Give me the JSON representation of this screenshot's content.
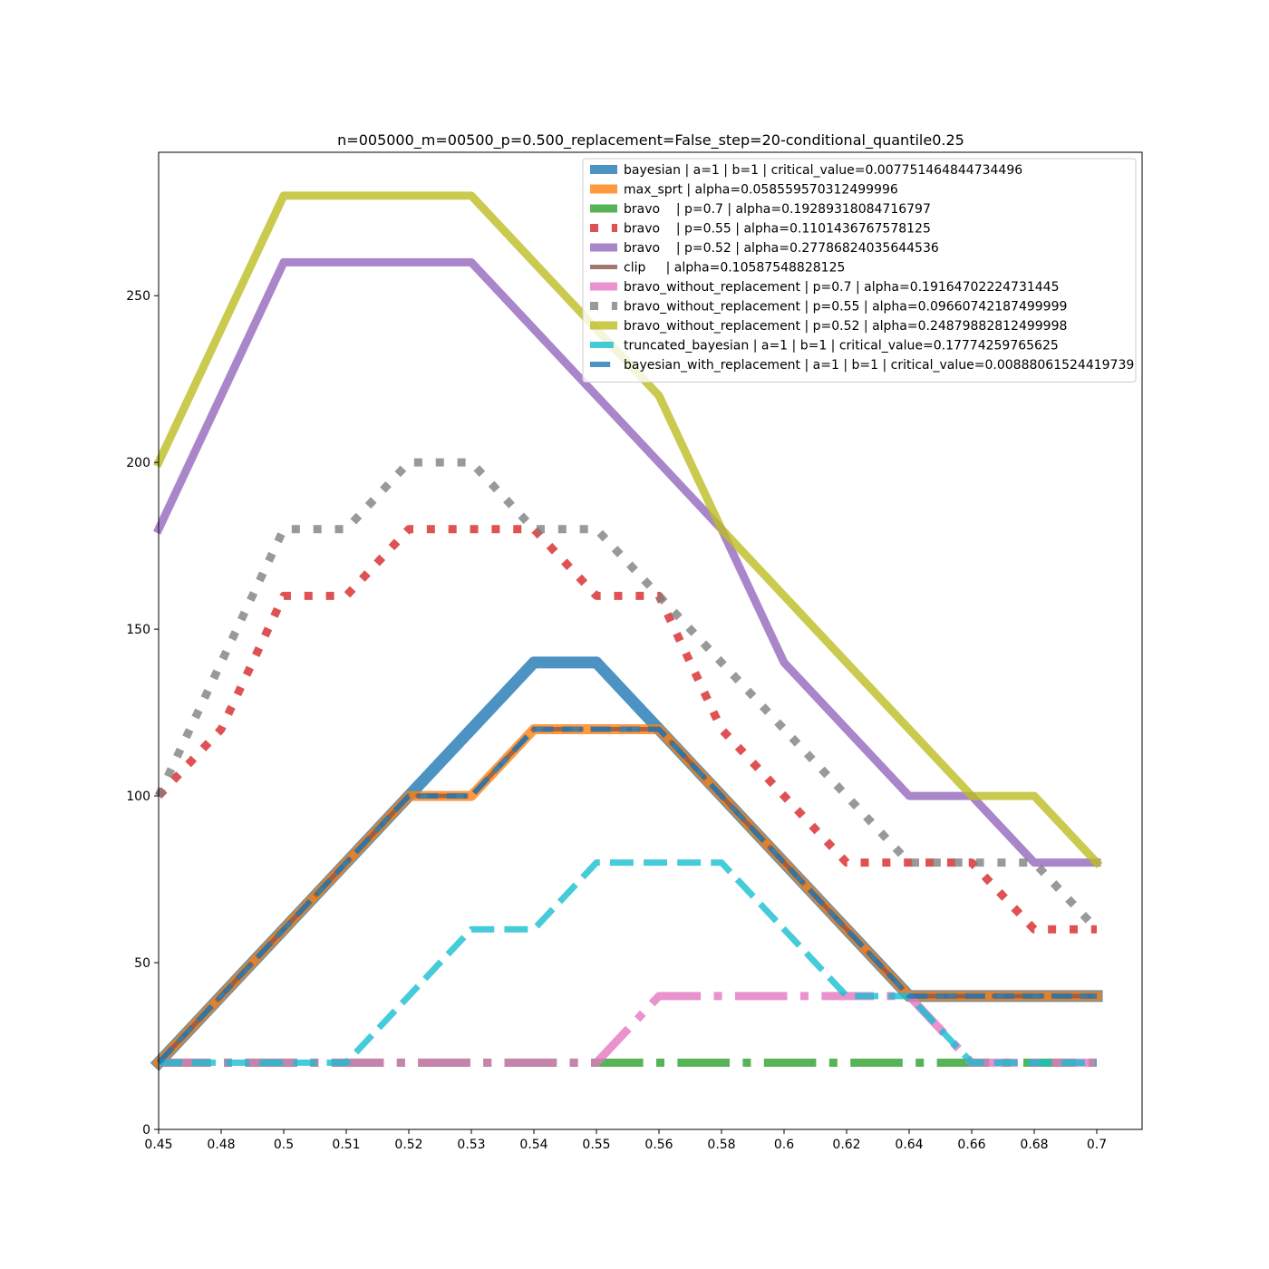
{
  "chart_data": {
    "type": "line",
    "title": "n=005000_m=00500_p=0.500_replacement=False_step=20-conditional_quantile0.25",
    "xlabel": "",
    "ylabel": "",
    "x": [
      "0.45",
      "0.48",
      "0.5",
      "0.51",
      "0.52",
      "0.53",
      "0.54",
      "0.55",
      "0.56",
      "0.58",
      "0.6",
      "0.62",
      "0.64",
      "0.66",
      "0.68",
      "0.7"
    ],
    "y_ticks": [
      0,
      50,
      100,
      150,
      200,
      250
    ],
    "ylim": [
      0,
      293
    ],
    "grid": false,
    "legend_position": "top-right",
    "series": [
      {
        "name": "bayesian | a=1 | b=1 | critical_value=0.007751464844734496",
        "color": "#1f77b4",
        "style": "solid",
        "width": 13,
        "values": [
          20,
          40,
          60,
          80,
          100,
          120,
          140,
          140,
          120,
          100,
          80,
          60,
          40,
          40,
          40,
          40
        ]
      },
      {
        "name": "max_sprt | alpha=0.058559570312499996",
        "color": "#ff7f0e",
        "style": "solid",
        "width": 11,
        "values": [
          20,
          40,
          60,
          80,
          100,
          100,
          120,
          120,
          120,
          100,
          80,
          60,
          40,
          40,
          40,
          40
        ]
      },
      {
        "name": "bravo    | p=0.7 | alpha=0.19289318084716797",
        "color": "#2ca02c",
        "style": "dashdot",
        "width": 9,
        "values": [
          20,
          20,
          20,
          20,
          20,
          20,
          20,
          20,
          20,
          20,
          20,
          20,
          20,
          20,
          20,
          20
        ]
      },
      {
        "name": "bravo    | p=0.55 | alpha=0.1101436767578125",
        "color": "#d62728",
        "style": "dotted",
        "width": 9,
        "values": [
          100,
          120,
          160,
          160,
          180,
          180,
          180,
          160,
          160,
          120,
          100,
          80,
          80,
          80,
          60,
          60
        ]
      },
      {
        "name": "bravo    | p=0.52 | alpha=0.27786824035644536",
        "color": "#9467bd",
        "style": "solid",
        "width": 9,
        "values": [
          180,
          220,
          260,
          260,
          260,
          260,
          240,
          220,
          200,
          180,
          140,
          120,
          100,
          100,
          80,
          80
        ]
      },
      {
        "name": "clip     | alpha=0.10587548828125",
        "color": "#8c564b",
        "style": "dashdot",
        "width": 5,
        "values": [
          20,
          40,
          60,
          80,
          100,
          100,
          120,
          120,
          120,
          100,
          80,
          60,
          40,
          40,
          40,
          40
        ]
      },
      {
        "name": "bravo_without_replacement | p=0.7 | alpha=0.19164702224731445",
        "color": "#e377c2",
        "style": "dashdot",
        "width": 9,
        "values": [
          20,
          20,
          20,
          20,
          20,
          20,
          20,
          20,
          40,
          40,
          40,
          40,
          40,
          20,
          20,
          20
        ]
      },
      {
        "name": "bravo_without_replacement | p=0.55 | alpha=0.09660742187499999",
        "color": "#7f7f7f",
        "style": "dotted",
        "width": 9,
        "values": [
          100,
          140,
          180,
          180,
          200,
          200,
          180,
          180,
          160,
          140,
          120,
          100,
          80,
          80,
          80,
          60
        ]
      },
      {
        "name": "bravo_without_replacement | p=0.52 | alpha=0.24879882812499998",
        "color": "#bcbd22",
        "style": "solid",
        "width": 9,
        "values": [
          200,
          240,
          280,
          280,
          280,
          280,
          260,
          240,
          220,
          180,
          160,
          140,
          120,
          100,
          100,
          80
        ]
      },
      {
        "name": "truncated_bayesian | a=1 | b=1 | critical_value=0.17774259765625",
        "color": "#17becf",
        "style": "dashed",
        "width": 7,
        "values": [
          20,
          20,
          20,
          20,
          40,
          60,
          60,
          80,
          80,
          80,
          60,
          40,
          40,
          20,
          20,
          20
        ]
      },
      {
        "name": "bayesian_with_replacement | a=1 | b=1 | critical_value=0.00888061524419739",
        "color": "#1f77b4",
        "style": "dashed",
        "width": 6,
        "values": [
          20,
          40,
          60,
          80,
          100,
          100,
          120,
          120,
          120,
          100,
          80,
          60,
          40,
          40,
          40,
          40
        ]
      }
    ]
  }
}
